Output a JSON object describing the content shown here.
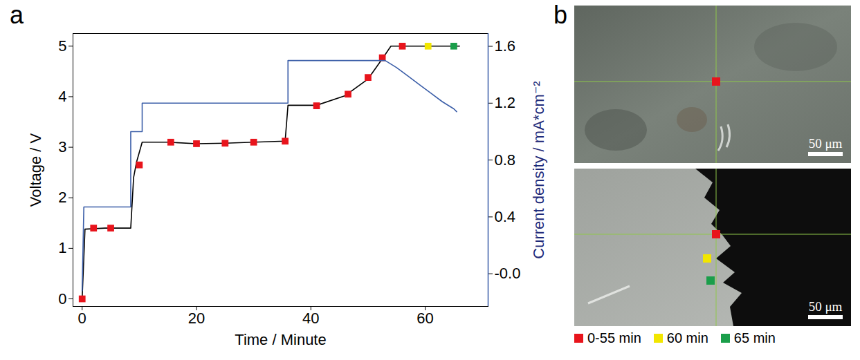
{
  "chart_data": {
    "type": "line",
    "panel": "a",
    "x_label": "Time / Minute",
    "y_label": "Voltage / V",
    "y2_label": "Current density / mA*cm⁻²",
    "xlim": [
      -1.6,
      71
    ],
    "xticks": [
      0,
      20,
      40,
      60
    ],
    "ylim": [
      -0.15,
      5.25
    ],
    "yticks": [
      0,
      1,
      2,
      3,
      4,
      5
    ],
    "y2lim": [
      -0.23,
      1.69
    ],
    "y2ticks": [
      {
        "value": 0,
        "label": "-0.0"
      },
      0.4,
      0.8,
      1.2,
      1.6
    ],
    "series": [
      {
        "type": "line",
        "color": "#000000",
        "x": [
          0,
          0.5,
          4,
          8.5,
          9,
          9.5,
          10.5,
          15,
          20,
          25,
          30,
          35.5,
          36,
          41,
          46,
          50,
          52.5,
          54,
          60,
          66
        ],
        "values": [
          0,
          1.38,
          1.4,
          1.4,
          2.4,
          2.7,
          3.1,
          3.1,
          3.07,
          3.08,
          3.1,
          3.12,
          3.83,
          3.83,
          4.02,
          4.35,
          4.75,
          5.0,
          5.0,
          5.0
        ]
      },
      {
        "type": "line",
        "color": "#3b5ea8",
        "axis": "y2",
        "x": [
          0,
          0.3,
          8.5,
          8.5,
          10.5,
          10.5,
          36,
          36,
          53,
          55,
          57,
          59,
          61,
          63,
          65,
          65.5
        ],
        "values": [
          -0.12,
          0.47,
          0.47,
          1.0,
          1.0,
          1.2,
          1.2,
          1.5,
          1.5,
          1.45,
          1.39,
          1.33,
          1.27,
          1.21,
          1.16,
          1.14
        ]
      },
      {
        "type": "scatter",
        "marker": "square",
        "x": [
          0,
          2,
          5,
          10,
          15.5,
          20,
          25,
          30,
          35.5,
          41,
          46.5,
          50,
          52.5,
          56,
          60.5,
          65
        ],
        "values": [
          0,
          1.4,
          1.4,
          2.65,
          3.1,
          3.07,
          3.08,
          3.1,
          3.12,
          3.82,
          4.05,
          4.38,
          4.77,
          5.0,
          5.0,
          5.0
        ],
        "colors": [
          "#e8141c",
          "#e8141c",
          "#e8141c",
          "#e8141c",
          "#e8141c",
          "#e8141c",
          "#e8141c",
          "#e8141c",
          "#e8141c",
          "#e8141c",
          "#e8141c",
          "#e8141c",
          "#e8141c",
          "#e8141c",
          "#f2e600",
          "#1a9e4a"
        ]
      }
    ]
  },
  "panel_b": {
    "panel": "b",
    "images": [
      {
        "scale_bar": "50 μm"
      },
      {
        "scale_bar": "50 μm"
      }
    ],
    "key_items": [
      {
        "label": "0-55 min",
        "color": "#e8141c"
      },
      {
        "label": "60 min",
        "color": "#f2e600"
      },
      {
        "label": "65 min",
        "color": "#1a9e4a"
      }
    ]
  }
}
